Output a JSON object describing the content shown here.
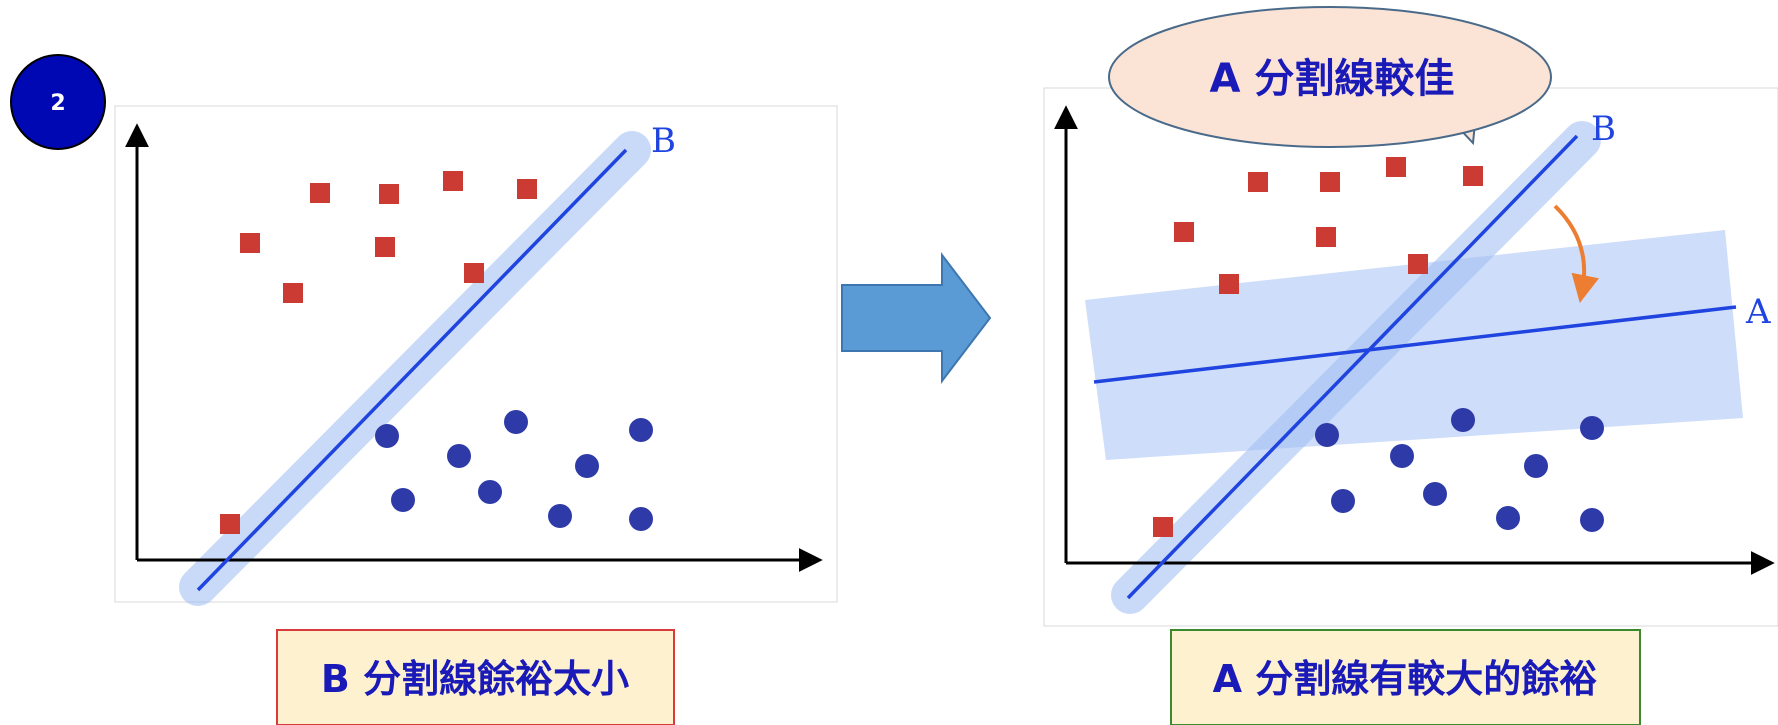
{
  "step_badge": "2",
  "left_panel": {
    "line_label": "B",
    "caption": "B 分割線餘裕太小"
  },
  "right_panel": {
    "speech_bubble": "A 分割線較佳",
    "line_label_b": "B",
    "line_label_a": "A",
    "caption": "A 分割線有較大的餘裕"
  },
  "colors": {
    "badge_fill": "#0008B4",
    "square": "#CC3B33",
    "circle": "#2E3AA8",
    "separator_line": "#1F44E0",
    "margin_band": "#9DBBF3",
    "arrow_fill": "#5B9BD5",
    "caption_fill": "#FDF1CF",
    "caption_text": "#1A1AB8",
    "left_caption_border": "#D93A3A",
    "right_caption_border": "#3B8A2E",
    "bubble_fill": "#FBE3D6",
    "rotation_arrow": "#ED7D31"
  }
}
